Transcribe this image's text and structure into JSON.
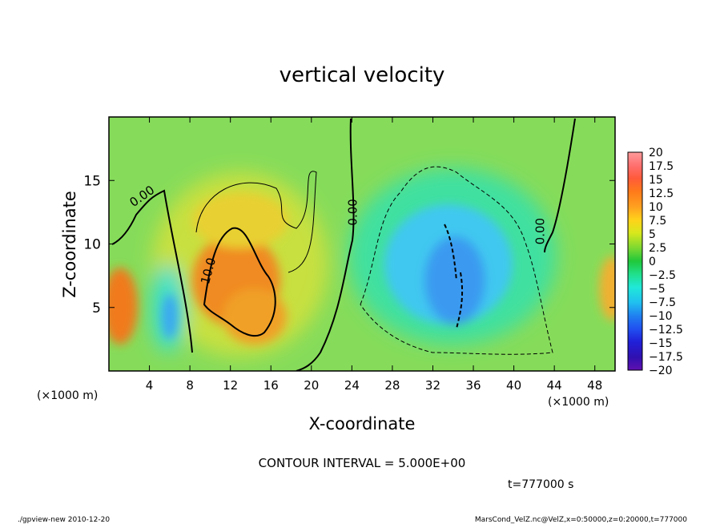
{
  "chart_data": {
    "type": "heatmap",
    "title": "vertical velocity",
    "xlabel": "X-coordinate",
    "ylabel": "Z-coordinate",
    "x_unit_label": "(×1000 m)",
    "y_unit_label": "(×1000 m)",
    "xlim": [
      0,
      50
    ],
    "ylim": [
      0,
      20
    ],
    "x_ticks": [
      4,
      8,
      12,
      16,
      20,
      24,
      28,
      32,
      36,
      40,
      44,
      48
    ],
    "y_ticks": [
      5,
      10,
      15
    ],
    "colorbar": {
      "min": -20,
      "max": 20,
      "labels": [
        "20",
        "17.5",
        "15",
        "12.5",
        "10",
        "7.5",
        "5",
        "2.5",
        "0",
        "−2.5",
        "−5",
        "−7.5",
        "−10",
        "−12.5",
        "−15",
        "−17.5",
        "−20"
      ]
    },
    "contour_labels": [
      "0.00",
      "0.00",
      "0.00",
      "10.0"
    ],
    "features": [
      {
        "x": 1.5,
        "z": 5.8,
        "value": 14.5
      },
      {
        "x": 6,
        "z": 4.5,
        "value": -7
      },
      {
        "x": 11.5,
        "z": 8.5,
        "value": 13
      },
      {
        "x": 15,
        "z": 5,
        "value": 12.5
      },
      {
        "x": 10,
        "z": 13,
        "value": 5
      },
      {
        "x": 33.5,
        "z": 7.5,
        "value": -10
      },
      {
        "x": 30,
        "z": 9,
        "value": -8
      },
      {
        "x": 49.5,
        "z": 5.5,
        "value": 12
      }
    ],
    "background_value": 1.5
  },
  "footer": {
    "contour_interval": "CONTOUR INTERVAL = 5.000E+00",
    "time": "t=777000 s",
    "program": "./gpview-new 2010-12-20",
    "source": "MarsCond_VelZ.nc@VelZ,x=0:50000,z=0:20000,t=777000"
  },
  "colors": {
    "zero": "#2ccd3a",
    "bg_green": "#7ed957",
    "orange": "#f07a1a",
    "cyan": "#35e0e0",
    "blue": "#3a90f0"
  }
}
